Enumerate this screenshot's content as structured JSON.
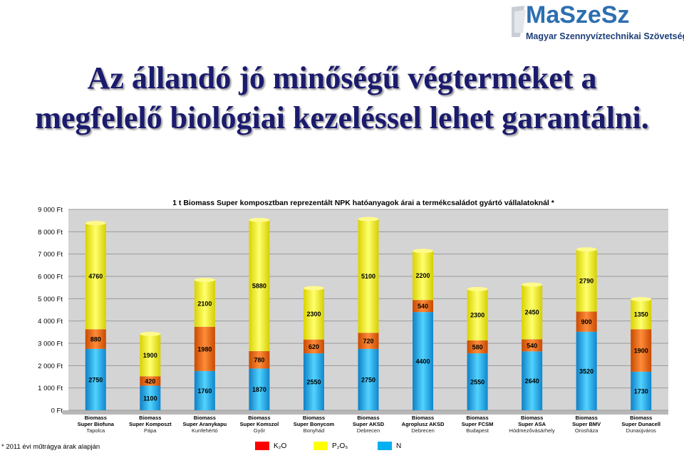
{
  "logo": {
    "name": "MaSzeSz",
    "subtitle": "Magyar Szennyvíztechnikai Szövetség"
  },
  "title": "Az állandó jó minőségű végterméket a megfelelő biológiai kezeléssel lehet garantálni.",
  "footnote": "* 2011 évi műtrágya árak alapján",
  "legend": [
    {
      "label": "K₂O",
      "color": "#ff0000"
    },
    {
      "label": "P₂O₅",
      "color": "#ffff00"
    },
    {
      "label": "N",
      "color": "#00b0f0"
    }
  ],
  "chart_data": {
    "type": "bar",
    "stacked": true,
    "title": "1 t Biomass Super komposztban reprezentált NPK hatóanyagok árai a termékcsaládot gyártó vállalatoknál *",
    "ylim": [
      0,
      9000
    ],
    "yticks": [
      "0 Ft",
      "1 000 Ft",
      "2 000 Ft",
      "3 000 Ft",
      "4 000 Ft",
      "5 000 Ft",
      "6 000 Ft",
      "7 000 Ft",
      "8 000 Ft",
      "9 000 Ft"
    ],
    "grid": true,
    "categories": [
      {
        "line1": "Biomass",
        "line2": "Super Biofuna",
        "city": "Tapolca"
      },
      {
        "line1": "Biomass",
        "line2": "Super Komposzt",
        "city": "Pápa"
      },
      {
        "line1": "Biomass",
        "line2": "Super Aranykapu",
        "city": "Kunfehértó"
      },
      {
        "line1": "Biomass",
        "line2": "Super Komszol",
        "city": "Győr"
      },
      {
        "line1": "Biomass",
        "line2": "Super Bonycom",
        "city": "Bonyhád"
      },
      {
        "line1": "Biomass",
        "line2": "Super AKSD",
        "city": "Debrecen"
      },
      {
        "line1": "Biomass",
        "line2": "Agroplusz AKSD",
        "city": "Debrecen"
      },
      {
        "line1": "Biomass",
        "line2": "Super FCSM",
        "city": "Budapest"
      },
      {
        "line1": "Biomass",
        "line2": "Super ASA",
        "city": "Hódmezővásárhely"
      },
      {
        "line1": "Biomass",
        "line2": "Super BMV",
        "city": "Orosháza"
      },
      {
        "line1": "Biomass",
        "line2": "Super Dunacell",
        "city": "Dunaújváros"
      }
    ],
    "series": [
      {
        "name": "N",
        "color": "#00b0f0",
        "values": [
          2750,
          1100,
          1760,
          1870,
          2550,
          2750,
          4400,
          2550,
          2640,
          3520,
          1730
        ]
      },
      {
        "name": "K2O",
        "color": "#ff0000",
        "values": [
          880,
          420,
          1980,
          780,
          620,
          720,
          540,
          580,
          540,
          900,
          1900
        ]
      },
      {
        "name": "P2O5",
        "color": "#ffff00",
        "values": [
          4760,
          1900,
          2100,
          5880,
          2300,
          5100,
          2200,
          2300,
          2450,
          2790,
          1350
        ]
      }
    ]
  }
}
